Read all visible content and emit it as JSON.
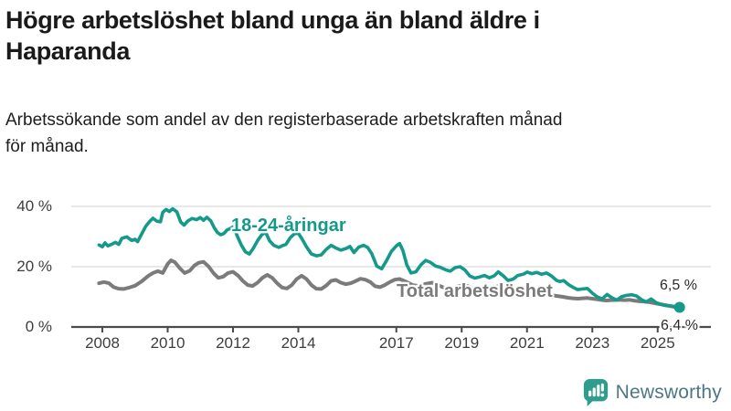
{
  "header": {
    "title_line1": "Högre arbetslöshet bland unga än bland äldre i",
    "title_line2": "Haparanda",
    "subtitle_line1": "Arbetssökande som andel av den registerbaserade arbetskraften månad",
    "subtitle_line2": "för månad."
  },
  "footer": {
    "brand": "Newsworthy"
  },
  "brand_colors": {
    "icon": "#2e9d8e",
    "text": "#4d7787"
  },
  "chart_data": {
    "type": "line",
    "title": "Högre arbetslöshet bland unga än bland äldre i Haparanda",
    "subtitle": "Arbetssökande som andel av den registerbaserade arbetskraften månad för månad.",
    "unit": "%",
    "xlim": [
      2007.05,
      2026.55
    ],
    "ylim": [
      0,
      44
    ],
    "grid": "horizontal-only",
    "legend": "inline-series-labels",
    "colors": {
      "grid": "#e1e1e1",
      "axis": "#4a4a4a",
      "tick_text": "#3d3d3d"
    },
    "x_ticks": [
      {
        "year": 2008,
        "label": "2008"
      },
      {
        "year": 2010,
        "label": "2010"
      },
      {
        "year": 2012,
        "label": "2012"
      },
      {
        "year": 2014,
        "label": "2014"
      },
      {
        "year": 2017,
        "label": "2017"
      },
      {
        "year": 2019,
        "label": "2019"
      },
      {
        "year": 2021,
        "label": "2021"
      },
      {
        "year": 2023,
        "label": "2023"
      },
      {
        "year": 2025,
        "label": "2025"
      }
    ],
    "y_ticks": [
      {
        "value": 0,
        "label": "0 %"
      },
      {
        "value": 20,
        "label": "20 %"
      },
      {
        "value": 40,
        "label": "40 %"
      }
    ],
    "series": [
      {
        "name": "18-24-åringar",
        "color": "#14998b",
        "width": 3.6,
        "end_label": "6,5 %",
        "end_value": 6.5,
        "end_dot": true,
        "points": [
          [
            2007.9,
            27.2
          ],
          [
            2008.0,
            26.6
          ],
          [
            2008.08,
            27.9
          ],
          [
            2008.17,
            26.9
          ],
          [
            2008.28,
            27.4
          ],
          [
            2008.4,
            28.1
          ],
          [
            2008.5,
            27.4
          ],
          [
            2008.6,
            29.4
          ],
          [
            2008.75,
            29.9
          ],
          [
            2008.9,
            28.7
          ],
          [
            2009.0,
            29.1
          ],
          [
            2009.08,
            28.3
          ],
          [
            2009.2,
            30.8
          ],
          [
            2009.33,
            33.4
          ],
          [
            2009.45,
            35.0
          ],
          [
            2009.55,
            36.1
          ],
          [
            2009.67,
            35.1
          ],
          [
            2009.78,
            34.9
          ],
          [
            2009.85,
            38.0
          ],
          [
            2009.95,
            39.0
          ],
          [
            2010.05,
            38.3
          ],
          [
            2010.15,
            39.2
          ],
          [
            2010.28,
            38.2
          ],
          [
            2010.4,
            34.8
          ],
          [
            2010.5,
            33.8
          ],
          [
            2010.62,
            35.2
          ],
          [
            2010.75,
            36.0
          ],
          [
            2010.88,
            35.6
          ],
          [
            2011.0,
            36.3
          ],
          [
            2011.1,
            35.4
          ],
          [
            2011.2,
            36.4
          ],
          [
            2011.32,
            35.2
          ],
          [
            2011.42,
            33.0
          ],
          [
            2011.52,
            31.4
          ],
          [
            2011.62,
            30.6
          ],
          [
            2011.72,
            31.0
          ],
          [
            2011.82,
            32.2
          ],
          [
            2011.92,
            32.7
          ],
          [
            2012.02,
            33.3
          ],
          [
            2012.13,
            30.2
          ],
          [
            2012.25,
            27.3
          ],
          [
            2012.38,
            24.9
          ],
          [
            2012.5,
            24.2
          ],
          [
            2012.62,
            26.1
          ],
          [
            2012.75,
            28.6
          ],
          [
            2012.88,
            30.6
          ],
          [
            2013.0,
            31.4
          ],
          [
            2013.12,
            28.6
          ],
          [
            2013.25,
            27.1
          ],
          [
            2013.4,
            26.4
          ],
          [
            2013.5,
            26.9
          ],
          [
            2013.62,
            27.4
          ],
          [
            2013.75,
            29.6
          ],
          [
            2013.88,
            30.9
          ],
          [
            2014.0,
            31.1
          ],
          [
            2014.12,
            29.1
          ],
          [
            2014.25,
            26.6
          ],
          [
            2014.4,
            24.2
          ],
          [
            2014.55,
            23.6
          ],
          [
            2014.7,
            23.9
          ],
          [
            2014.85,
            25.7
          ],
          [
            2015.0,
            27.1
          ],
          [
            2015.15,
            26.2
          ],
          [
            2015.3,
            25.5
          ],
          [
            2015.45,
            26.0
          ],
          [
            2015.58,
            26.7
          ],
          [
            2015.7,
            24.7
          ],
          [
            2015.85,
            26.5
          ],
          [
            2016.0,
            27.1
          ],
          [
            2016.12,
            26.4
          ],
          [
            2016.25,
            24.3
          ],
          [
            2016.4,
            20.2
          ],
          [
            2016.55,
            19.3
          ],
          [
            2016.7,
            22.0
          ],
          [
            2016.85,
            25.1
          ],
          [
            2017.0,
            26.9
          ],
          [
            2017.1,
            27.7
          ],
          [
            2017.2,
            25.4
          ],
          [
            2017.32,
            20.6
          ],
          [
            2017.45,
            17.9
          ],
          [
            2017.6,
            18.3
          ],
          [
            2017.75,
            20.6
          ],
          [
            2017.9,
            22.1
          ],
          [
            2018.05,
            21.4
          ],
          [
            2018.2,
            20.2
          ],
          [
            2018.35,
            19.8
          ],
          [
            2018.5,
            19.0
          ],
          [
            2018.65,
            18.5
          ],
          [
            2018.8,
            19.7
          ],
          [
            2018.95,
            20.0
          ],
          [
            2019.1,
            18.9
          ],
          [
            2019.25,
            16.9
          ],
          [
            2019.4,
            16.2
          ],
          [
            2019.55,
            16.6
          ],
          [
            2019.7,
            17.1
          ],
          [
            2019.85,
            16.3
          ],
          [
            2020.0,
            17.0
          ],
          [
            2020.12,
            18.3
          ],
          [
            2020.28,
            16.9
          ],
          [
            2020.42,
            15.4
          ],
          [
            2020.58,
            15.9
          ],
          [
            2020.72,
            17.1
          ],
          [
            2020.88,
            17.5
          ],
          [
            2021.0,
            18.2
          ],
          [
            2021.15,
            17.7
          ],
          [
            2021.3,
            18.1
          ],
          [
            2021.45,
            17.5
          ],
          [
            2021.6,
            17.9
          ],
          [
            2021.75,
            16.9
          ],
          [
            2021.9,
            15.5
          ],
          [
            2022.0,
            15.1
          ],
          [
            2022.12,
            15.4
          ],
          [
            2022.28,
            14.0
          ],
          [
            2022.42,
            13.1
          ],
          [
            2022.55,
            12.4
          ],
          [
            2022.7,
            12.6
          ],
          [
            2022.85,
            12.8
          ],
          [
            2023.0,
            11.2
          ],
          [
            2023.15,
            10.0
          ],
          [
            2023.3,
            9.3
          ],
          [
            2023.45,
            10.8
          ],
          [
            2023.6,
            9.7
          ],
          [
            2023.75,
            8.9
          ],
          [
            2023.9,
            10.1
          ],
          [
            2024.05,
            10.5
          ],
          [
            2024.2,
            10.7
          ],
          [
            2024.35,
            10.3
          ],
          [
            2024.5,
            9.1
          ],
          [
            2024.65,
            8.3
          ],
          [
            2024.8,
            9.3
          ],
          [
            2024.95,
            8.1
          ],
          [
            2025.1,
            7.5
          ],
          [
            2025.25,
            7.1
          ],
          [
            2025.4,
            7.0
          ],
          [
            2025.55,
            6.7
          ],
          [
            2025.67,
            6.5
          ]
        ]
      },
      {
        "name": "Total arbetslöshet",
        "color": "#7b7b7b",
        "width": 4,
        "end_label": "6,4 %",
        "end_value": 6.4,
        "end_dot": false,
        "points": [
          [
            2007.9,
            14.5
          ],
          [
            2008.05,
            14.9
          ],
          [
            2008.2,
            14.5
          ],
          [
            2008.35,
            13.2
          ],
          [
            2008.5,
            12.7
          ],
          [
            2008.65,
            12.6
          ],
          [
            2008.8,
            13.0
          ],
          [
            2009.0,
            13.7
          ],
          [
            2009.2,
            15.1
          ],
          [
            2009.4,
            16.9
          ],
          [
            2009.55,
            17.9
          ],
          [
            2009.7,
            18.5
          ],
          [
            2009.85,
            17.9
          ],
          [
            2010.0,
            20.9
          ],
          [
            2010.1,
            22.1
          ],
          [
            2010.22,
            21.5
          ],
          [
            2010.38,
            19.4
          ],
          [
            2010.52,
            17.9
          ],
          [
            2010.68,
            18.7
          ],
          [
            2010.82,
            20.4
          ],
          [
            2010.95,
            21.3
          ],
          [
            2011.1,
            21.6
          ],
          [
            2011.25,
            20.1
          ],
          [
            2011.4,
            17.9
          ],
          [
            2011.55,
            16.3
          ],
          [
            2011.7,
            16.7
          ],
          [
            2011.85,
            17.9
          ],
          [
            2012.0,
            18.3
          ],
          [
            2012.15,
            17.1
          ],
          [
            2012.3,
            15.3
          ],
          [
            2012.45,
            13.9
          ],
          [
            2012.6,
            13.6
          ],
          [
            2012.75,
            14.7
          ],
          [
            2012.9,
            16.3
          ],
          [
            2013.05,
            17.3
          ],
          [
            2013.2,
            16.3
          ],
          [
            2013.35,
            14.5
          ],
          [
            2013.5,
            13.1
          ],
          [
            2013.65,
            12.8
          ],
          [
            2013.8,
            13.9
          ],
          [
            2013.95,
            15.9
          ],
          [
            2014.1,
            17.0
          ],
          [
            2014.25,
            15.9
          ],
          [
            2014.4,
            13.9
          ],
          [
            2014.55,
            12.7
          ],
          [
            2014.7,
            12.6
          ],
          [
            2014.85,
            13.7
          ],
          [
            2015.0,
            15.3
          ],
          [
            2015.15,
            15.6
          ],
          [
            2015.3,
            14.7
          ],
          [
            2015.45,
            14.2
          ],
          [
            2015.6,
            14.5
          ],
          [
            2015.75,
            15.2
          ],
          [
            2015.9,
            16.0
          ],
          [
            2016.05,
            15.7
          ],
          [
            2016.2,
            14.9
          ],
          [
            2016.35,
            13.5
          ],
          [
            2016.5,
            13.2
          ],
          [
            2016.65,
            13.9
          ],
          [
            2016.8,
            14.9
          ],
          [
            2016.95,
            15.7
          ],
          [
            2017.1,
            15.9
          ],
          [
            2017.3,
            15.0
          ],
          [
            2017.5,
            13.9
          ],
          [
            2017.7,
            13.5
          ],
          [
            2017.9,
            14.3
          ],
          [
            2018.1,
            14.7
          ],
          [
            2018.3,
            13.7
          ],
          [
            2018.5,
            12.9
          ],
          [
            2018.7,
            12.7
          ],
          [
            2018.9,
            13.5
          ],
          [
            2019.1,
            13.9
          ],
          [
            2019.3,
            13.1
          ],
          [
            2019.5,
            12.3
          ],
          [
            2019.7,
            12.1
          ],
          [
            2019.9,
            12.7
          ],
          [
            2020.1,
            13.5
          ],
          [
            2020.3,
            13.1
          ],
          [
            2020.5,
            12.5
          ],
          [
            2020.7,
            12.1
          ],
          [
            2020.9,
            12.3
          ],
          [
            2021.1,
            12.1
          ],
          [
            2021.3,
            11.5
          ],
          [
            2021.5,
            11.1
          ],
          [
            2021.7,
            10.7
          ],
          [
            2021.9,
            10.3
          ],
          [
            2022.1,
            10.0
          ],
          [
            2022.25,
            9.7
          ],
          [
            2022.4,
            9.5
          ],
          [
            2022.55,
            9.4
          ],
          [
            2022.7,
            9.5
          ],
          [
            2022.85,
            9.6
          ],
          [
            2023.0,
            9.4
          ],
          [
            2023.2,
            9.1
          ],
          [
            2023.4,
            8.8
          ],
          [
            2023.6,
            8.9
          ],
          [
            2023.8,
            9.0
          ],
          [
            2024.0,
            8.9
          ],
          [
            2024.15,
            9.0
          ],
          [
            2024.3,
            8.7
          ],
          [
            2024.45,
            8.5
          ],
          [
            2024.6,
            8.4
          ],
          [
            2024.75,
            8.2
          ],
          [
            2024.9,
            7.9
          ],
          [
            2025.05,
            7.6
          ],
          [
            2025.2,
            7.3
          ],
          [
            2025.35,
            7.0
          ],
          [
            2025.5,
            6.7
          ],
          [
            2025.67,
            6.4
          ]
        ]
      }
    ]
  }
}
